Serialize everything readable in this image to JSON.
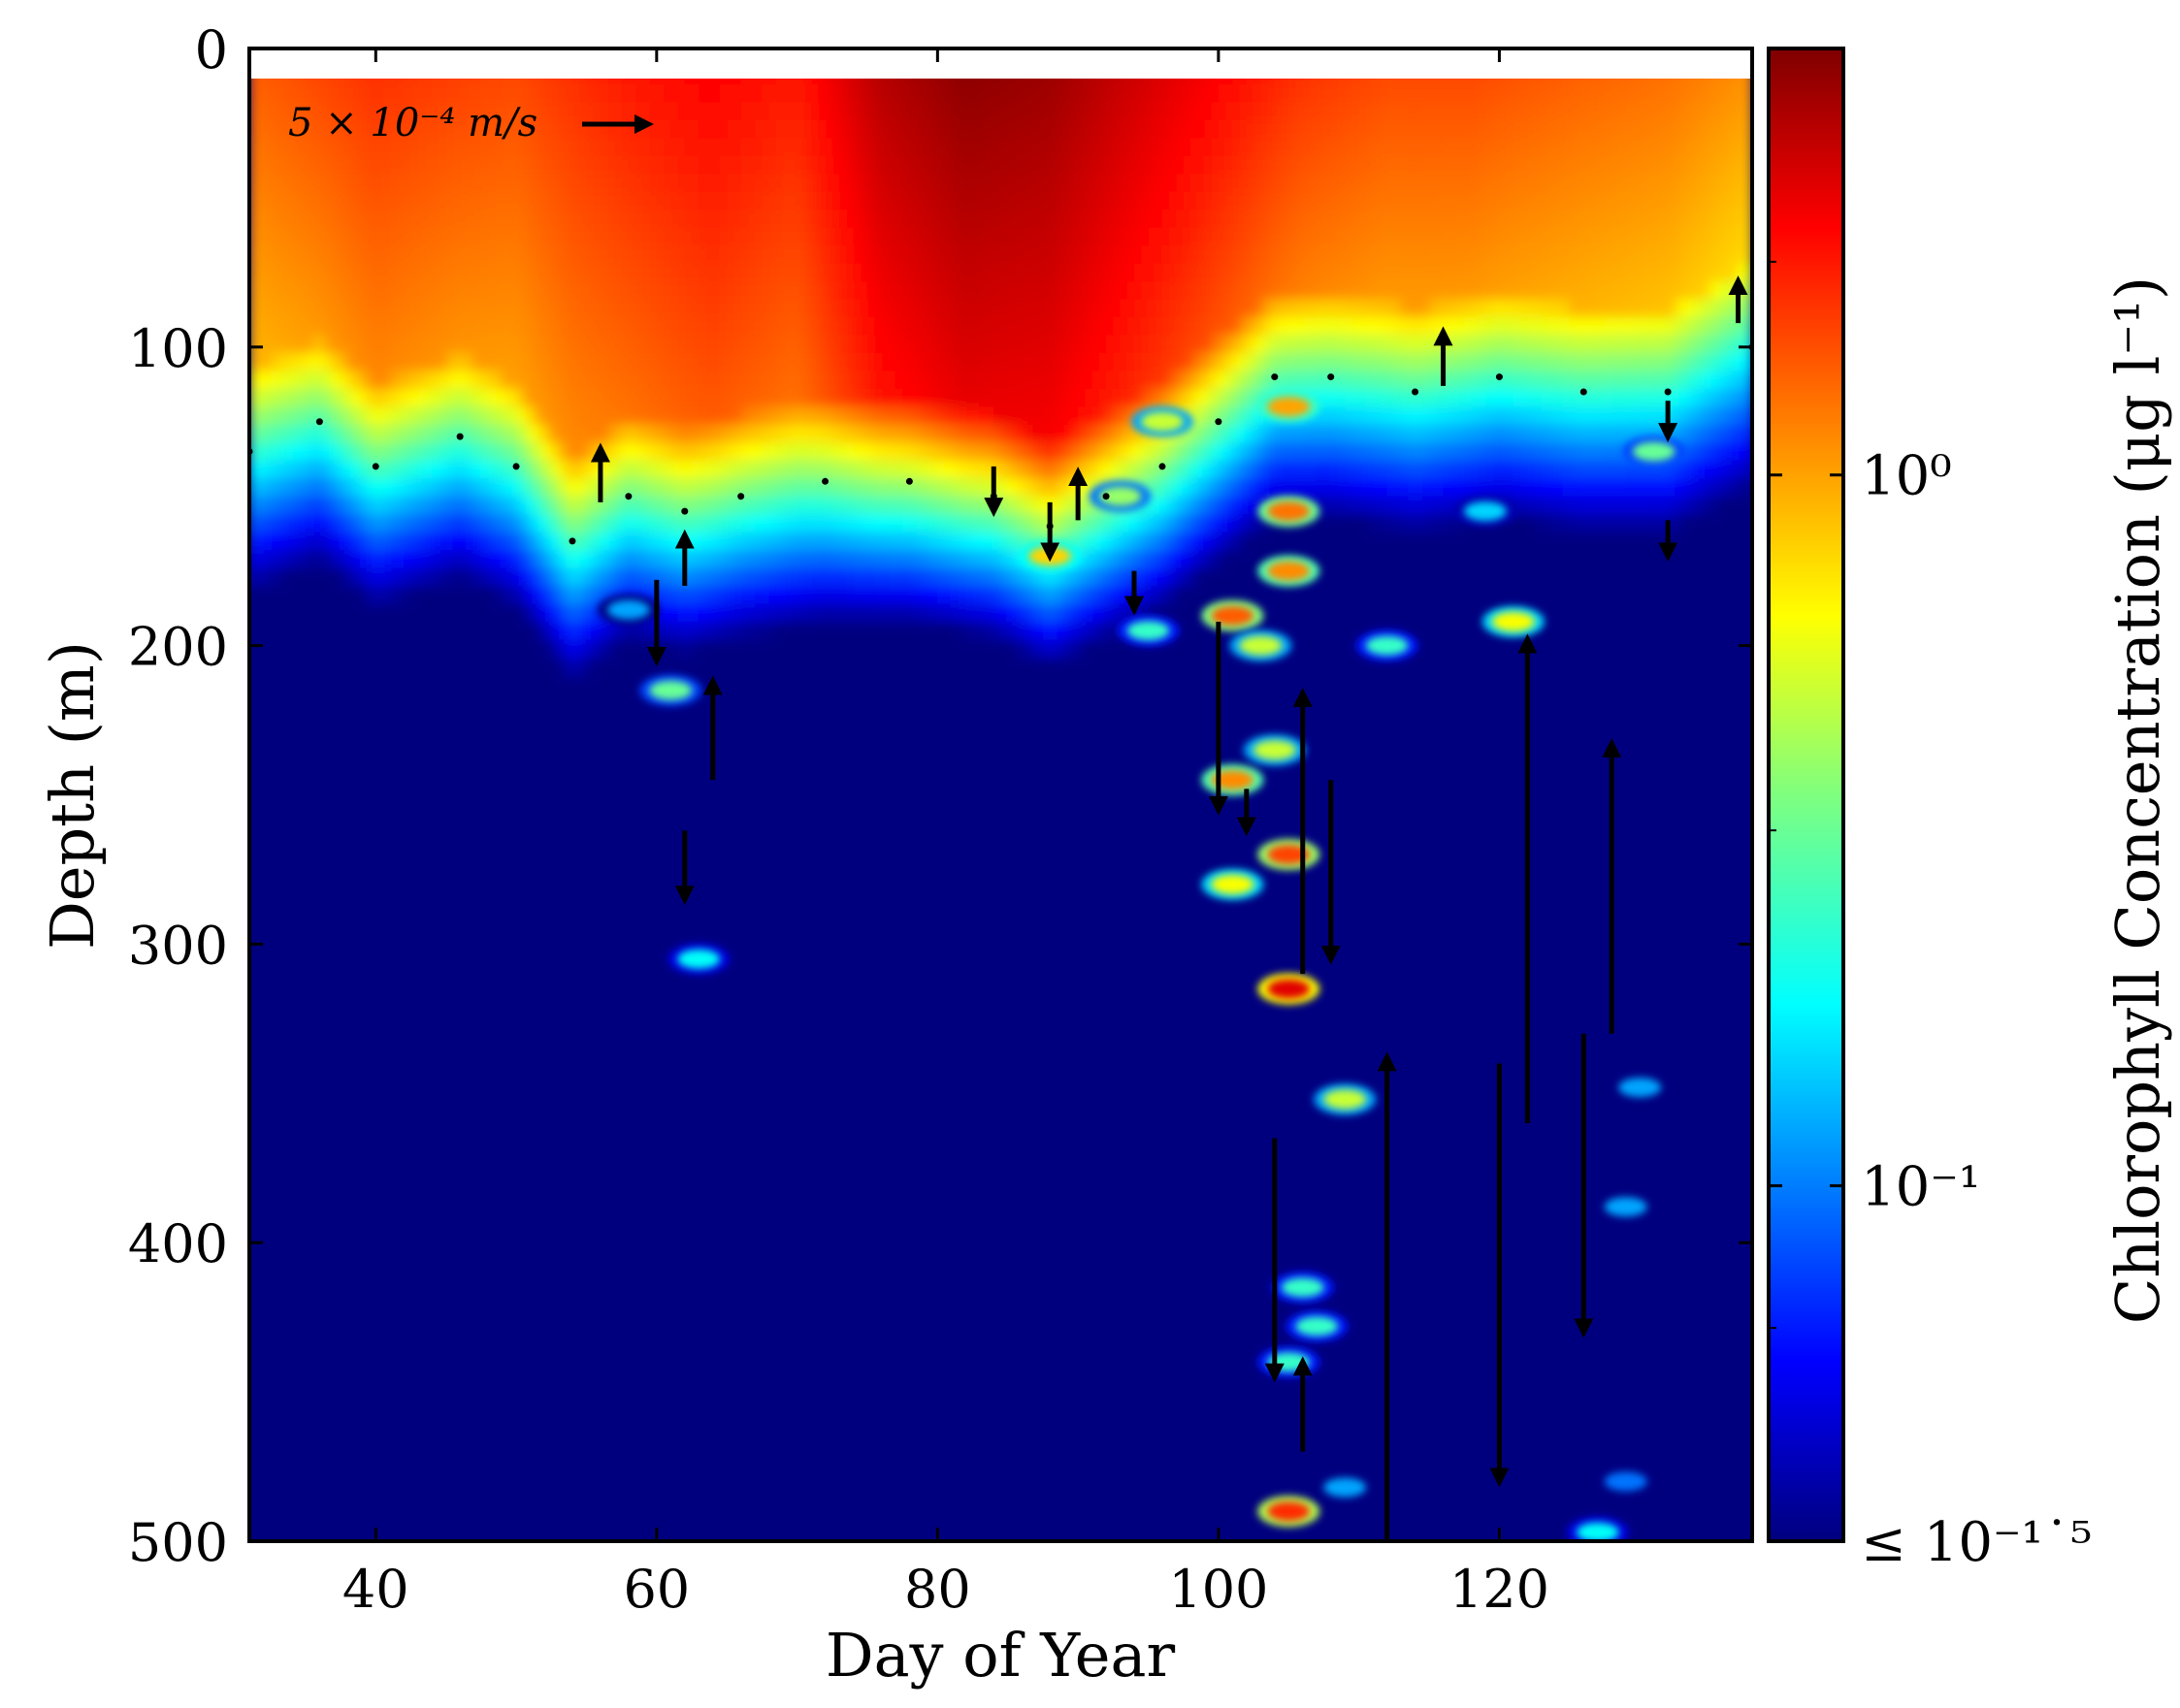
{
  "chart_data": {
    "type": "heatmap",
    "xlabel": "Day of Year",
    "ylabel": "Depth (m)",
    "colorbar_label": "Chlorophyll Concentration (μg l⁻¹)",
    "xlim": [
      31,
      138
    ],
    "ylim": [
      500,
      0
    ],
    "x_ticks": [
      40,
      60,
      80,
      100,
      120
    ],
    "y_ticks": [
      0,
      100,
      200,
      300,
      400,
      500
    ],
    "colorbar_scale": "log10",
    "colorbar_range": [
      -1.5,
      0.6
    ],
    "colorbar_ticks": [
      {
        "value": 0,
        "label": "10⁰"
      },
      {
        "value": -1,
        "label": "10⁻¹"
      },
      {
        "value": -1.5,
        "label": "≤ 10⁻¹˙⁵"
      }
    ],
    "colormap": "jet",
    "colors": [
      "#00007f",
      "#0000ff",
      "#007fff",
      "#00ffff",
      "#7fff7f",
      "#ffff00",
      "#ff7f00",
      "#ff0000",
      "#7f0000"
    ],
    "no_data_band_depth": [
      0,
      10
    ],
    "mixed_layer_depth": [
      {
        "day": 31,
        "depth": 135
      },
      {
        "day": 36,
        "depth": 125
      },
      {
        "day": 40,
        "depth": 140
      },
      {
        "day": 46,
        "depth": 130
      },
      {
        "day": 50,
        "depth": 140
      },
      {
        "day": 54,
        "depth": 165
      },
      {
        "day": 58,
        "depth": 150
      },
      {
        "day": 62,
        "depth": 155
      },
      {
        "day": 66,
        "depth": 150
      },
      {
        "day": 72,
        "depth": 145
      },
      {
        "day": 78,
        "depth": 145
      },
      {
        "day": 84,
        "depth": 150
      },
      {
        "day": 88,
        "depth": 160
      },
      {
        "day": 92,
        "depth": 150
      },
      {
        "day": 96,
        "depth": 140
      },
      {
        "day": 100,
        "depth": 125
      },
      {
        "day": 104,
        "depth": 110
      },
      {
        "day": 108,
        "depth": 110
      },
      {
        "day": 114,
        "depth": 115
      },
      {
        "day": 120,
        "depth": 110
      },
      {
        "day": 126,
        "depth": 115
      },
      {
        "day": 132,
        "depth": 115
      },
      {
        "day": 138,
        "depth": 100
      }
    ],
    "chlorophyll_max_profile": [
      {
        "day": 31,
        "log_surface": 0.15
      },
      {
        "day": 40,
        "log_surface": 0.25
      },
      {
        "day": 50,
        "log_surface": 0.2
      },
      {
        "day": 58,
        "log_surface": 0.3
      },
      {
        "day": 64,
        "log_surface": 0.35
      },
      {
        "day": 70,
        "log_surface": 0.3
      },
      {
        "day": 76,
        "log_surface": 0.5
      },
      {
        "day": 82,
        "log_surface": 0.58
      },
      {
        "day": 88,
        "log_surface": 0.55
      },
      {
        "day": 94,
        "log_surface": 0.45
      },
      {
        "day": 100,
        "log_surface": 0.35
      },
      {
        "day": 106,
        "log_surface": 0.25
      },
      {
        "day": 112,
        "log_surface": 0.2
      },
      {
        "day": 118,
        "log_surface": 0.2
      },
      {
        "day": 126,
        "log_surface": 0.15
      },
      {
        "day": 132,
        "log_surface": 0.12
      },
      {
        "day": 138,
        "log_surface": 0.05
      }
    ],
    "patches": [
      {
        "day": 61,
        "depth": 215,
        "log_chl": -0.5
      },
      {
        "day": 63,
        "depth": 305,
        "log_chl": -0.7
      },
      {
        "day": 88,
        "depth": 170,
        "log_chl": -0.1
      },
      {
        "day": 93,
        "depth": 150,
        "log_chl": -0.4
      },
      {
        "day": 95,
        "depth": 195,
        "log_chl": -0.6
      },
      {
        "day": 96,
        "depth": 125,
        "log_chl": -0.3
      },
      {
        "day": 101,
        "depth": 190,
        "log_chl": 0.15
      },
      {
        "day": 103,
        "depth": 200,
        "log_chl": -0.3
      },
      {
        "day": 104,
        "depth": 235,
        "log_chl": -0.3
      },
      {
        "day": 101,
        "depth": 245,
        "log_chl": 0.05
      },
      {
        "day": 105,
        "depth": 270,
        "log_chl": 0.2
      },
      {
        "day": 101,
        "depth": 280,
        "log_chl": -0.2
      },
      {
        "day": 105,
        "depth": 315,
        "log_chl": 0.4
      },
      {
        "day": 105,
        "depth": 175,
        "log_chl": 0.05
      },
      {
        "day": 105,
        "depth": 155,
        "log_chl": 0.1
      },
      {
        "day": 105,
        "depth": 120,
        "log_chl": 0.0
      },
      {
        "day": 109,
        "depth": 352,
        "log_chl": -0.3
      },
      {
        "day": 106,
        "depth": 415,
        "log_chl": -0.6
      },
      {
        "day": 107,
        "depth": 428,
        "log_chl": -0.6
      },
      {
        "day": 105,
        "depth": 440,
        "log_chl": -0.6
      },
      {
        "day": 105,
        "depth": 490,
        "log_chl": 0.25
      },
      {
        "day": 109,
        "depth": 482,
        "log_chl": -0.9
      },
      {
        "day": 112,
        "depth": 200,
        "log_chl": -0.6
      },
      {
        "day": 121,
        "depth": 192,
        "log_chl": -0.2
      },
      {
        "day": 119,
        "depth": 155,
        "log_chl": -0.8
      },
      {
        "day": 127,
        "depth": 497,
        "log_chl": -0.7
      },
      {
        "day": 130,
        "depth": 348,
        "log_chl": -0.9
      },
      {
        "day": 129,
        "depth": 388,
        "log_chl": -0.9
      },
      {
        "day": 129,
        "depth": 480,
        "log_chl": -1.0
      },
      {
        "day": 58,
        "depth": 188,
        "log_chl": -0.9
      },
      {
        "day": 131,
        "depth": 135,
        "log_chl": -0.5
      }
    ],
    "velocity_arrows": [
      {
        "day": 60,
        "depth_from": 178,
        "depth_to": 205
      },
      {
        "day": 62,
        "depth_from": 180,
        "depth_to": 163
      },
      {
        "day": 62,
        "depth_from": 262,
        "depth_to": 285
      },
      {
        "day": 64,
        "depth_from": 245,
        "depth_to": 212
      },
      {
        "day": 56,
        "depth_from": 152,
        "depth_to": 134
      },
      {
        "day": 84,
        "depth_from": 140,
        "depth_to": 155
      },
      {
        "day": 88,
        "depth_from": 152,
        "depth_to": 170
      },
      {
        "day": 90,
        "depth_from": 158,
        "depth_to": 142
      },
      {
        "day": 94,
        "depth_from": 175,
        "depth_to": 188
      },
      {
        "day": 100,
        "depth_from": 192,
        "depth_to": 255
      },
      {
        "day": 102,
        "depth_from": 248,
        "depth_to": 262
      },
      {
        "day": 104,
        "depth_from": 365,
        "depth_to": 445
      },
      {
        "day": 106,
        "depth_from": 310,
        "depth_to": 216
      },
      {
        "day": 106,
        "depth_from": 470,
        "depth_to": 440
      },
      {
        "day": 108,
        "depth_from": 245,
        "depth_to": 305
      },
      {
        "day": 112,
        "depth_from": 500,
        "depth_to": 338
      },
      {
        "day": 116,
        "depth_from": 113,
        "depth_to": 95
      },
      {
        "day": 120,
        "depth_from": 340,
        "depth_to": 480
      },
      {
        "day": 122,
        "depth_from": 360,
        "depth_to": 198
      },
      {
        "day": 126,
        "depth_from": 330,
        "depth_to": 430
      },
      {
        "day": 128,
        "depth_from": 330,
        "depth_to": 233
      },
      {
        "day": 132,
        "depth_from": 118,
        "depth_to": 130
      },
      {
        "day": 132,
        "depth_from": 158,
        "depth_to": 170
      },
      {
        "day": 137,
        "depth_from": 92,
        "depth_to": 78
      }
    ],
    "scale_arrow_label": "5 × 10⁻⁴ m/s",
    "grid": false,
    "legend": "none"
  }
}
